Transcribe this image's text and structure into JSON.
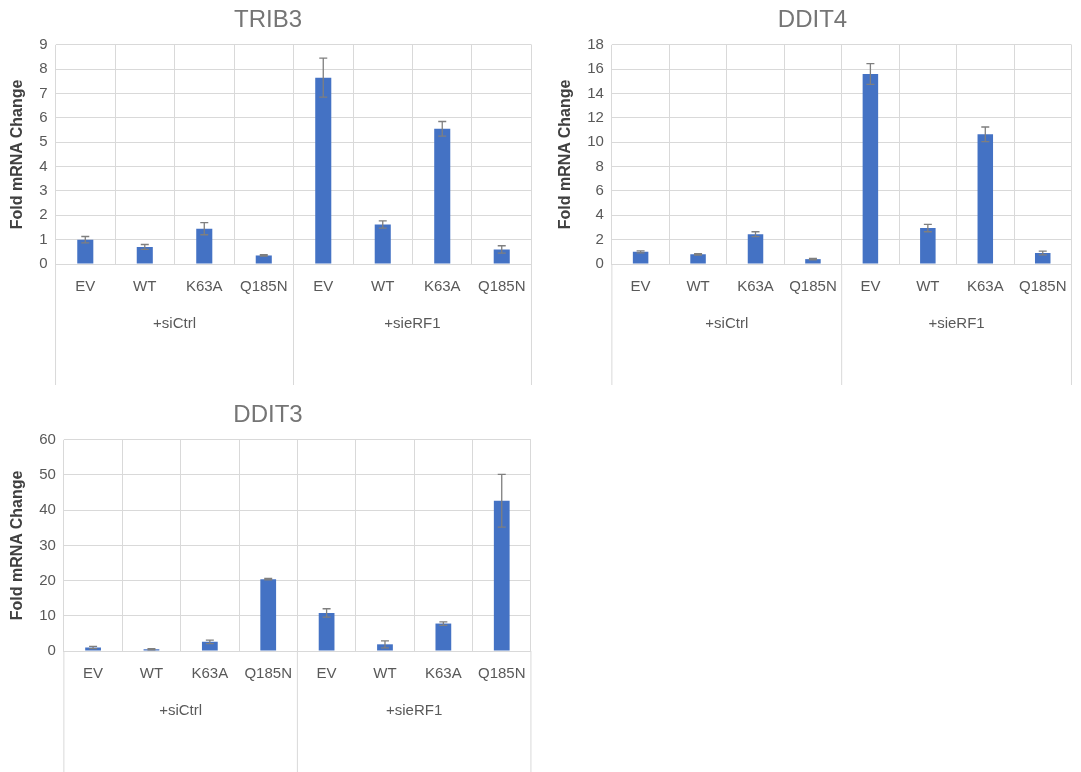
{
  "chart_data": [
    {
      "type": "bar",
      "title": "TRIB3",
      "ylabel": "Fold mRNA Change",
      "categories": [
        "EV",
        "WT",
        "K63A",
        "Q185N",
        "EV",
        "WT",
        "K63A",
        "Q185N"
      ],
      "values": [
        1.0,
        0.7,
        1.45,
        0.35,
        7.65,
        1.62,
        5.55,
        0.6
      ],
      "errors": [
        0.13,
        0.1,
        0.25,
        0.03,
        0.8,
        0.15,
        0.3,
        0.15
      ],
      "color": "#4472c4",
      "ylim": [
        0,
        9
      ],
      "yticks": [
        0,
        1,
        2,
        3,
        4,
        5,
        6,
        7,
        8,
        9
      ],
      "grid": true,
      "annotations": [
        "+siCtrl",
        "+sieRF1"
      ]
    },
    {
      "type": "bar",
      "title": "DDIT4",
      "ylabel": "Fold mRNA Change",
      "categories": [
        "EV",
        "WT",
        "K63A",
        "Q185N",
        "EV",
        "WT",
        "K63A",
        "Q185N"
      ],
      "values": [
        1.0,
        0.8,
        2.45,
        0.4,
        15.6,
        2.95,
        10.65,
        0.9
      ],
      "errors": [
        0.08,
        0.06,
        0.2,
        0.05,
        0.85,
        0.3,
        0.6,
        0.15
      ],
      "color": "#4472c4",
      "ylim": [
        0,
        18
      ],
      "yticks": [
        0,
        2,
        4,
        6,
        8,
        10,
        12,
        14,
        16,
        18
      ],
      "grid": true,
      "annotations": [
        "+siCtrl",
        "+sieRF1"
      ]
    },
    {
      "type": "bar",
      "title": "DDIT3",
      "ylabel": "Fold mRNA Change",
      "categories": [
        "EV",
        "WT",
        "K63A",
        "Q185N",
        "EV",
        "WT",
        "K63A",
        "Q185N"
      ],
      "values": [
        1.0,
        0.5,
        2.6,
        20.4,
        10.8,
        1.9,
        7.8,
        42.7
      ],
      "errors": [
        0.3,
        0.15,
        0.5,
        0.2,
        1.2,
        1.0,
        0.5,
        7.5
      ],
      "color": "#4472c4",
      "ylim": [
        0,
        60
      ],
      "yticks": [
        0,
        10,
        20,
        30,
        40,
        50,
        60
      ],
      "grid": true,
      "annotations": [
        "+siCtrl",
        "+sieRF1"
      ]
    }
  ]
}
